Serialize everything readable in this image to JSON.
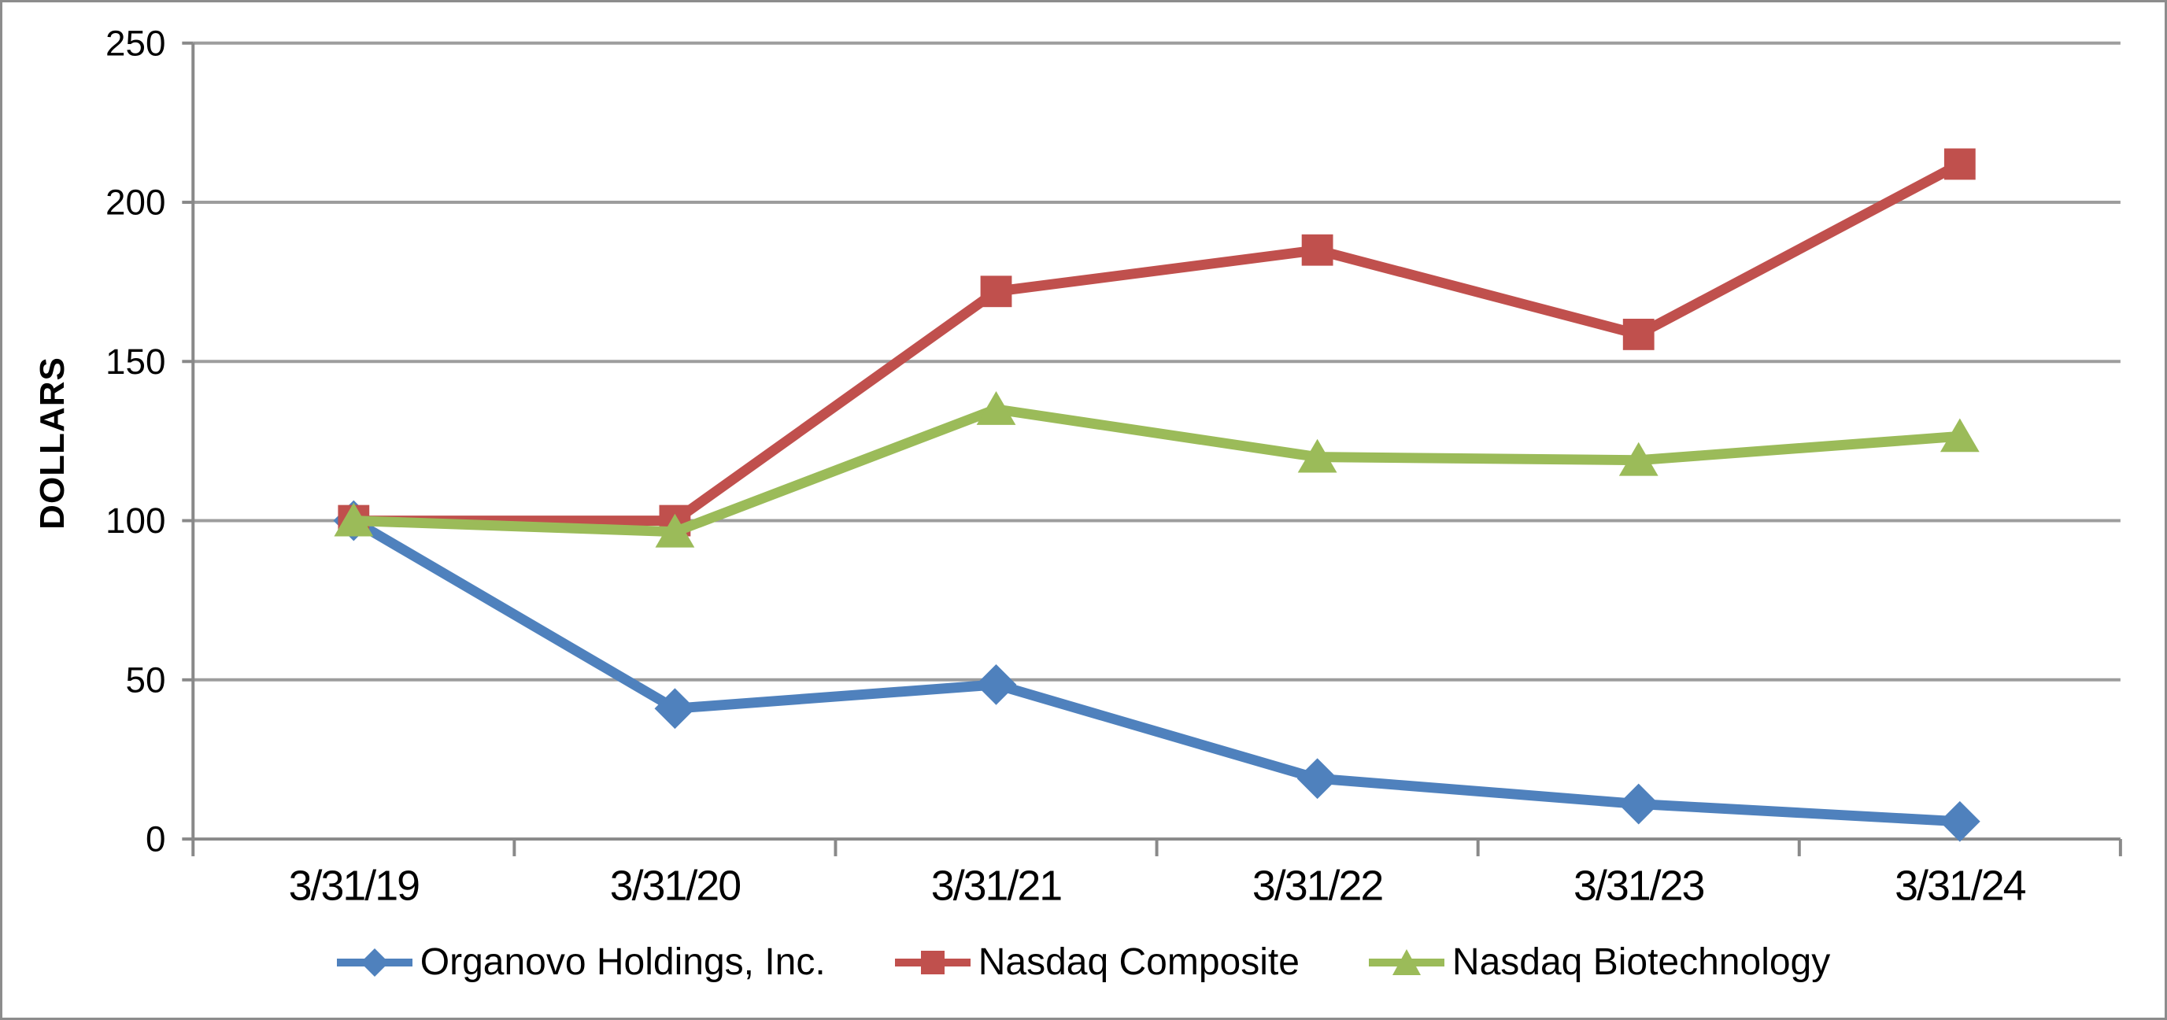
{
  "y_axis_title": "DOLLARS",
  "colors": {
    "background": "#FFFFFF",
    "frame_border": "#8C8C8C",
    "gridline": "#9D9D9D",
    "axis": "#898989",
    "text": "#000000",
    "series_blue": "#4F81BD",
    "series_red": "#C0504D",
    "series_green": "#9BBB59"
  },
  "chart_data": {
    "type": "line",
    "title": "",
    "xlabel": "",
    "ylabel": "DOLLARS",
    "categories": [
      "3/31/19",
      "3/31/20",
      "3/31/21",
      "3/31/22",
      "3/31/23",
      "3/31/24"
    ],
    "series": [
      {
        "name": "Organovo Holdings, Inc.",
        "color": "#4F81BD",
        "marker": "diamond",
        "values": [
          100,
          41,
          48.5,
          19,
          11,
          5.5
        ]
      },
      {
        "name": "Nasdaq Composite",
        "color": "#C0504D",
        "marker": "square",
        "values": [
          100,
          100,
          172,
          185,
          158.5,
          212
        ]
      },
      {
        "name": "Nasdaq Biotechnology",
        "color": "#9BBB59",
        "marker": "triangle",
        "values": [
          100,
          96.5,
          135,
          120,
          119,
          126.5
        ]
      }
    ],
    "ylim": [
      0,
      250
    ],
    "y_ticks": [
      0,
      50,
      100,
      150,
      200,
      250
    ],
    "grid": true,
    "legend_position": "bottom"
  }
}
